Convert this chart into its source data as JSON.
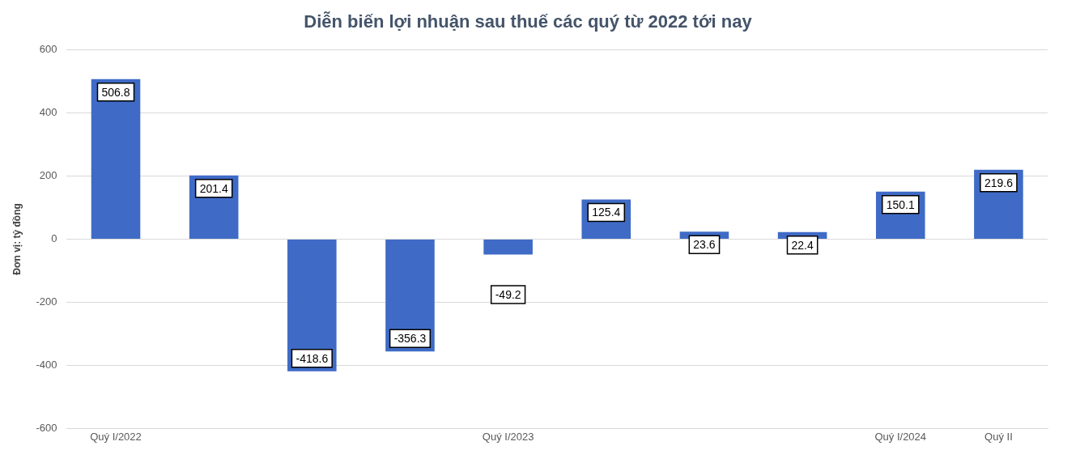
{
  "chart_data": {
    "type": "bar",
    "title": "Diễn biến lợi nhuận sau thuế các quý từ 2022 tới nay",
    "ylabel": "Đơn vị: tỷ đồng",
    "categories": [
      "Quý I/2022",
      null,
      null,
      null,
      "Quý I/2023",
      null,
      null,
      null,
      "Quý I/2024",
      "Quý II"
    ],
    "values": [
      506.8,
      201.4,
      -418.6,
      -356.3,
      -49.2,
      125.4,
      23.6,
      22.4,
      150.1,
      219.6
    ],
    "color": "#3f6bc6",
    "ylim": [
      -600,
      600
    ],
    "yticks": [
      -600,
      -400,
      -200,
      0,
      200,
      400,
      600
    ],
    "grid": "y",
    "data_labels": true
  }
}
